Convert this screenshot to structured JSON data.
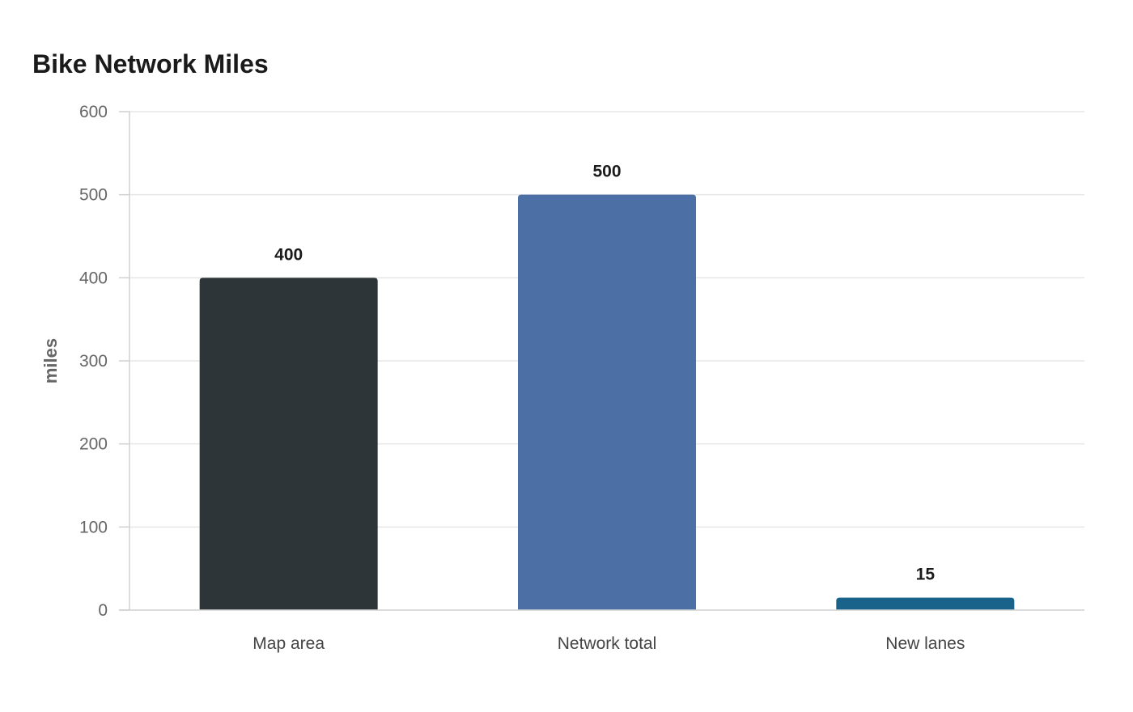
{
  "chart_data": {
    "type": "bar",
    "title": "Bike Network Miles",
    "xlabel": "",
    "ylabel": "miles",
    "categories": [
      "Map area",
      "Network total",
      "New lanes"
    ],
    "values": [
      400,
      500,
      15
    ],
    "value_labels": [
      "400",
      "500",
      "15"
    ],
    "colors": [
      "#2e3538",
      "#4c6fa5",
      "#19628a"
    ],
    "ylim": [
      0,
      600
    ],
    "yticks": [
      0,
      100,
      200,
      300,
      400,
      500,
      600
    ],
    "ytick_labels": [
      "0",
      "100",
      "200",
      "300",
      "400",
      "500",
      "600"
    ],
    "grid": true,
    "legend": "none"
  }
}
